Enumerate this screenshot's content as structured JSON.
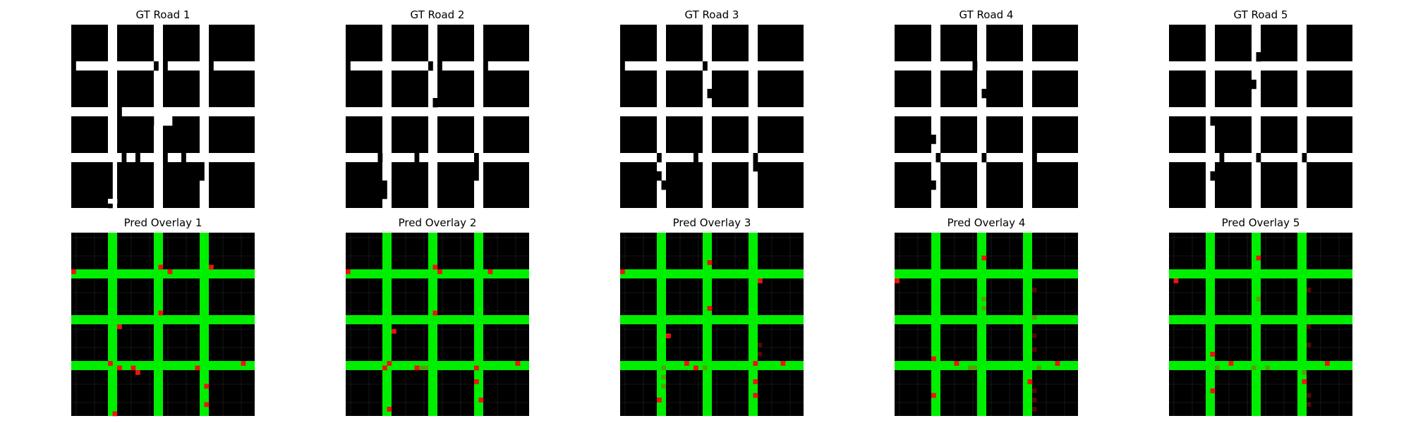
{
  "figure": {
    "background": "#ffffff"
  },
  "colors": {
    "building": "#000000",
    "road": "#ffffff",
    "pred_road": "#00ee00",
    "pred_error": "#ee1111",
    "pred_gridline": "#555555"
  },
  "chart_data": [
    {
      "type": "heatmap",
      "title": "GT Road 1",
      "grid_size": [
        40,
        40
      ],
      "road_rows": [
        [
          8,
          10
        ],
        [
          18,
          20
        ],
        [
          28,
          30
        ]
      ],
      "road_cols": [
        [
          8,
          10
        ],
        [
          18,
          20
        ],
        [
          28,
          30
        ]
      ],
      "extra_building_cells": [
        [
          8,
          0
        ],
        [
          9,
          0
        ],
        [
          8,
          18
        ],
        [
          9,
          18
        ],
        [
          8,
          20
        ],
        [
          9,
          20
        ],
        [
          8,
          30
        ],
        [
          9,
          30
        ],
        [
          20,
          17
        ],
        [
          21,
          17
        ],
        [
          18,
          10
        ],
        [
          19,
          10
        ],
        [
          20,
          13
        ],
        [
          21,
          13
        ],
        [
          28,
          11
        ],
        [
          29,
          11
        ],
        [
          28,
          14
        ],
        [
          29,
          14
        ],
        [
          28,
          20
        ],
        [
          29,
          20
        ],
        [
          28,
          24
        ],
        [
          29,
          24
        ],
        [
          30,
          8
        ],
        [
          31,
          8
        ],
        [
          32,
          8
        ],
        [
          33,
          8
        ],
        [
          34,
          8
        ],
        [
          35,
          8
        ],
        [
          36,
          8
        ],
        [
          37,
          8
        ],
        [
          38,
          8
        ],
        [
          39,
          8
        ],
        [
          30,
          28
        ],
        [
          31,
          28
        ],
        [
          32,
          28
        ],
        [
          33,
          28
        ]
      ],
      "extra_road_cells": [
        [
          38,
          9
        ],
        [
          38,
          8
        ],
        [
          20,
          20
        ],
        [
          21,
          20
        ],
        [
          20,
          21
        ],
        [
          21,
          21
        ]
      ]
    },
    {
      "type": "heatmap",
      "title": "GT Road 2",
      "grid_size": [
        40,
        40
      ],
      "road_rows": [
        [
          8,
          10
        ],
        [
          18,
          20
        ],
        [
          28,
          30
        ]
      ],
      "road_cols": [
        [
          8,
          10
        ],
        [
          18,
          20
        ],
        [
          28,
          30
        ]
      ],
      "extra_building_cells": [
        [
          8,
          0
        ],
        [
          9,
          0
        ],
        [
          8,
          18
        ],
        [
          9,
          18
        ],
        [
          8,
          20
        ],
        [
          9,
          20
        ],
        [
          8,
          30
        ],
        [
          9,
          30
        ],
        [
          16,
          19
        ],
        [
          17,
          19
        ],
        [
          20,
          10
        ],
        [
          21,
          10
        ],
        [
          28,
          7
        ],
        [
          29,
          7
        ],
        [
          28,
          15
        ],
        [
          29,
          15
        ],
        [
          28,
          28
        ],
        [
          29,
          28
        ],
        [
          30,
          28
        ],
        [
          31,
          28
        ],
        [
          32,
          28
        ],
        [
          33,
          28
        ],
        [
          34,
          8
        ],
        [
          35,
          8
        ],
        [
          36,
          8
        ],
        [
          37,
          8
        ]
      ],
      "extra_road_cells": []
    },
    {
      "type": "heatmap",
      "title": "GT Road 3",
      "grid_size": [
        40,
        40
      ],
      "road_rows": [
        [
          8,
          10
        ],
        [
          18,
          20
        ],
        [
          28,
          30
        ]
      ],
      "road_cols": [
        [
          8,
          10
        ],
        [
          18,
          20
        ],
        [
          28,
          30
        ]
      ],
      "extra_building_cells": [
        [
          8,
          0
        ],
        [
          9,
          0
        ],
        [
          8,
          18
        ],
        [
          9,
          18
        ],
        [
          10,
          30
        ],
        [
          11,
          30
        ],
        [
          14,
          19
        ],
        [
          15,
          19
        ],
        [
          20,
          10
        ],
        [
          21,
          10
        ],
        [
          22,
          11
        ],
        [
          23,
          11
        ],
        [
          28,
          8
        ],
        [
          29,
          8
        ],
        [
          28,
          16
        ],
        [
          29,
          16
        ],
        [
          28,
          29
        ],
        [
          29,
          29
        ],
        [
          30,
          29
        ],
        [
          31,
          29
        ],
        [
          32,
          8
        ],
        [
          33,
          8
        ],
        [
          34,
          9
        ],
        [
          35,
          9
        ]
      ],
      "extra_road_cells": []
    },
    {
      "type": "heatmap",
      "title": "GT Road 4",
      "grid_size": [
        40,
        40
      ],
      "road_rows": [
        [
          8,
          10
        ],
        [
          18,
          20
        ],
        [
          28,
          30
        ]
      ],
      "road_cols": [
        [
          8,
          10
        ],
        [
          18,
          20
        ],
        [
          28,
          30
        ]
      ],
      "extra_building_cells": [
        [
          8,
          17
        ],
        [
          9,
          17
        ],
        [
          10,
          0
        ],
        [
          11,
          0
        ],
        [
          12,
          30
        ],
        [
          13,
          30
        ],
        [
          14,
          19
        ],
        [
          15,
          19
        ],
        [
          22,
          10
        ],
        [
          23,
          10
        ],
        [
          24,
          8
        ],
        [
          25,
          8
        ],
        [
          28,
          9
        ],
        [
          29,
          9
        ],
        [
          28,
          19
        ],
        [
          29,
          19
        ],
        [
          28,
          30
        ],
        [
          29,
          30
        ],
        [
          30,
          31
        ],
        [
          31,
          31
        ],
        [
          34,
          8
        ],
        [
          35,
          8
        ]
      ],
      "extra_road_cells": []
    },
    {
      "type": "heatmap",
      "title": "GT Road 5",
      "grid_size": [
        40,
        40
      ],
      "road_rows": [
        [
          8,
          10
        ],
        [
          18,
          20
        ],
        [
          28,
          30
        ]
      ],
      "road_cols": [
        [
          8,
          10
        ],
        [
          18,
          20
        ],
        [
          28,
          30
        ]
      ],
      "extra_building_cells": [
        [
          6,
          19
        ],
        [
          7,
          19
        ],
        [
          10,
          1
        ],
        [
          11,
          1
        ],
        [
          12,
          18
        ],
        [
          13,
          18
        ],
        [
          14,
          31
        ],
        [
          15,
          31
        ],
        [
          20,
          9
        ],
        [
          21,
          9
        ],
        [
          22,
          10
        ],
        [
          23,
          10
        ],
        [
          28,
          11
        ],
        [
          29,
          11
        ],
        [
          28,
          19
        ],
        [
          29,
          19
        ],
        [
          28,
          29
        ],
        [
          29,
          29
        ],
        [
          30,
          30
        ],
        [
          31,
          30
        ],
        [
          32,
          9
        ],
        [
          33,
          9
        ]
      ],
      "extra_road_cells": []
    },
    {
      "type": "heatmap",
      "title": "Pred Overlay 1",
      "grid_size": [
        40,
        40
      ],
      "road_rows": [
        [
          8,
          10
        ],
        [
          18,
          20
        ],
        [
          28,
          30
        ]
      ],
      "road_cols": [
        [
          8,
          10
        ],
        [
          18,
          20
        ],
        [
          28,
          30
        ]
      ],
      "error_cells": [
        [
          8,
          0
        ],
        [
          7,
          19
        ],
        [
          8,
          21
        ],
        [
          7,
          30
        ],
        [
          17,
          19
        ],
        [
          20,
          10
        ],
        [
          29,
          10
        ],
        [
          28,
          8
        ],
        [
          29,
          13
        ],
        [
          30,
          14
        ],
        [
          29,
          27
        ],
        [
          28,
          37
        ],
        [
          33,
          29
        ],
        [
          37,
          29
        ],
        [
          39,
          9
        ]
      ],
      "faint_error_cells": []
    },
    {
      "type": "heatmap",
      "title": "Pred Overlay 2",
      "grid_size": [
        40,
        40
      ],
      "road_rows": [
        [
          8,
          10
        ],
        [
          18,
          20
        ],
        [
          28,
          30
        ]
      ],
      "road_cols": [
        [
          8,
          10
        ],
        [
          18,
          20
        ],
        [
          28,
          30
        ]
      ],
      "error_cells": [
        [
          8,
          0
        ],
        [
          7,
          19
        ],
        [
          8,
          20
        ],
        [
          8,
          31
        ],
        [
          17,
          19
        ],
        [
          21,
          10
        ],
        [
          28,
          9
        ],
        [
          29,
          8
        ],
        [
          29,
          15
        ],
        [
          29,
          28
        ],
        [
          28,
          37
        ],
        [
          32,
          28
        ],
        [
          36,
          29
        ],
        [
          38,
          9
        ]
      ],
      "faint_error_cells": [
        [
          29,
          16
        ],
        [
          29,
          17
        ]
      ]
    },
    {
      "type": "heatmap",
      "title": "Pred Overlay 3",
      "grid_size": [
        40,
        40
      ],
      "road_rows": [
        [
          8,
          10
        ],
        [
          18,
          20
        ],
        [
          28,
          30
        ]
      ],
      "road_cols": [
        [
          8,
          10
        ],
        [
          18,
          20
        ],
        [
          28,
          30
        ]
      ],
      "error_cells": [
        [
          6,
          19
        ],
        [
          8,
          0
        ],
        [
          10,
          30
        ],
        [
          16,
          19
        ],
        [
          22,
          10
        ],
        [
          28,
          14
        ],
        [
          29,
          16
        ],
        [
          28,
          29
        ],
        [
          28,
          35
        ],
        [
          32,
          29
        ],
        [
          36,
          8
        ],
        [
          35,
          29
        ]
      ],
      "faint_error_cells": [
        [
          29,
          9
        ],
        [
          29,
          18
        ],
        [
          24,
          30
        ],
        [
          26,
          30
        ],
        [
          31,
          9
        ],
        [
          33,
          9
        ]
      ]
    },
    {
      "type": "heatmap",
      "title": "Pred Overlay 4",
      "grid_size": [
        40,
        40
      ],
      "road_rows": [
        [
          8,
          10
        ],
        [
          18,
          20
        ],
        [
          28,
          30
        ]
      ],
      "road_cols": [
        [
          8,
          10
        ],
        [
          18,
          20
        ],
        [
          28,
          30
        ]
      ],
      "error_cells": [
        [
          5,
          19
        ],
        [
          10,
          0
        ],
        [
          27,
          8
        ],
        [
          28,
          13
        ],
        [
          28,
          35
        ],
        [
          32,
          29
        ],
        [
          35,
          8
        ]
      ],
      "faint_error_cells": [
        [
          12,
          30
        ],
        [
          18,
          30
        ],
        [
          22,
          30
        ],
        [
          25,
          30
        ],
        [
          29,
          16
        ],
        [
          29,
          17
        ],
        [
          29,
          31
        ],
        [
          34,
          30
        ],
        [
          36,
          30
        ],
        [
          38,
          30
        ],
        [
          14,
          19
        ],
        [
          16,
          19
        ]
      ]
    },
    {
      "type": "heatmap",
      "title": "Pred Overlay 5",
      "grid_size": [
        40,
        40
      ],
      "road_rows": [
        [
          8,
          10
        ],
        [
          18,
          20
        ],
        [
          28,
          30
        ]
      ],
      "road_cols": [
        [
          8,
          10
        ],
        [
          18,
          20
        ],
        [
          28,
          30
        ]
      ],
      "error_cells": [
        [
          5,
          19
        ],
        [
          10,
          1
        ],
        [
          26,
          9
        ],
        [
          28,
          13
        ],
        [
          28,
          34
        ],
        [
          32,
          29
        ],
        [
          34,
          9
        ]
      ],
      "faint_error_cells": [
        [
          12,
          30
        ],
        [
          20,
          30
        ],
        [
          24,
          30
        ],
        [
          29,
          10
        ],
        [
          29,
          18
        ],
        [
          29,
          21
        ],
        [
          30,
          29
        ],
        [
          35,
          30
        ],
        [
          37,
          30
        ],
        [
          14,
          19
        ]
      ]
    }
  ]
}
